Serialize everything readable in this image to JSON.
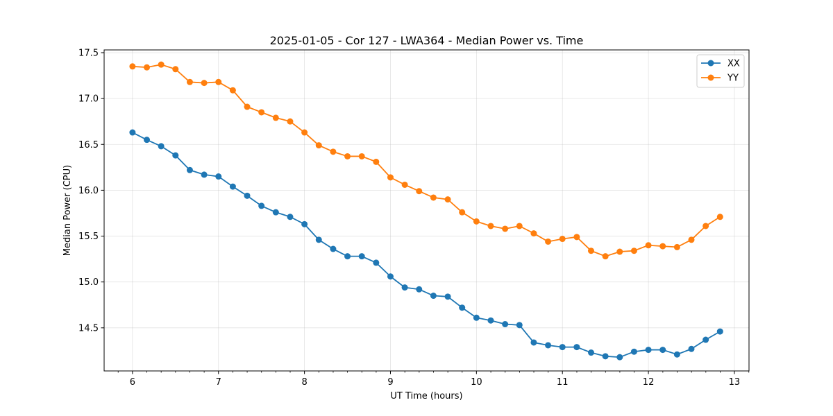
{
  "chart_data": {
    "type": "line",
    "title": "2025-01-05 - Cor 127 - LWA364 - Median Power vs. Time",
    "xlabel": "UT Time (hours)",
    "ylabel": "Median Power (CPU)",
    "xlim": [
      5.67,
      13.17
    ],
    "ylim": [
      14.03,
      17.53
    ],
    "xticks": [
      6,
      7,
      8,
      9,
      10,
      11,
      12,
      13
    ],
    "xticks_minor_step": 0.1667,
    "yticks": [
      14.5,
      15.0,
      15.5,
      16.0,
      16.5,
      17.0,
      17.5
    ],
    "ytick_labels": [
      "14.5",
      "15.0",
      "15.5",
      "16.0",
      "16.5",
      "17.0",
      "17.5"
    ],
    "grid": true,
    "legend_position": "top-right",
    "x": [
      6.0,
      6.1667,
      6.3333,
      6.5,
      6.6667,
      6.8333,
      7.0,
      7.1667,
      7.3333,
      7.5,
      7.6667,
      7.8333,
      8.0,
      8.1667,
      8.3333,
      8.5,
      8.6667,
      8.8333,
      9.0,
      9.1667,
      9.3333,
      9.5,
      9.6667,
      9.8333,
      10.0,
      10.1667,
      10.3333,
      10.5,
      10.6667,
      10.8333,
      11.0,
      11.1667,
      11.3333,
      11.5,
      11.6667,
      11.8333,
      12.0,
      12.1667,
      12.3333,
      12.5,
      12.6667,
      12.8333
    ],
    "series": [
      {
        "name": "XX",
        "color": "#1f77b4",
        "values": [
          16.63,
          16.55,
          16.48,
          16.38,
          16.22,
          16.17,
          16.15,
          16.04,
          15.94,
          15.83,
          15.76,
          15.71,
          15.63,
          15.46,
          15.36,
          15.28,
          15.28,
          15.21,
          15.06,
          14.94,
          14.92,
          14.85,
          14.84,
          14.72,
          14.61,
          14.58,
          14.54,
          14.53,
          14.34,
          14.31,
          14.29,
          14.29,
          14.23,
          14.19,
          14.18,
          14.24,
          14.26,
          14.26,
          14.21,
          14.27,
          14.37,
          14.46
        ]
      },
      {
        "name": "YY",
        "color": "#ff7f0e",
        "values": [
          17.35,
          17.34,
          17.37,
          17.32,
          17.18,
          17.17,
          17.18,
          17.09,
          16.91,
          16.85,
          16.79,
          16.75,
          16.63,
          16.49,
          16.42,
          16.37,
          16.37,
          16.31,
          16.14,
          16.06,
          15.99,
          15.92,
          15.9,
          15.76,
          15.66,
          15.61,
          15.58,
          15.61,
          15.53,
          15.44,
          15.47,
          15.49,
          15.34,
          15.28,
          15.33,
          15.34,
          15.4,
          15.39,
          15.38,
          15.46,
          15.61,
          15.71
        ]
      }
    ]
  }
}
